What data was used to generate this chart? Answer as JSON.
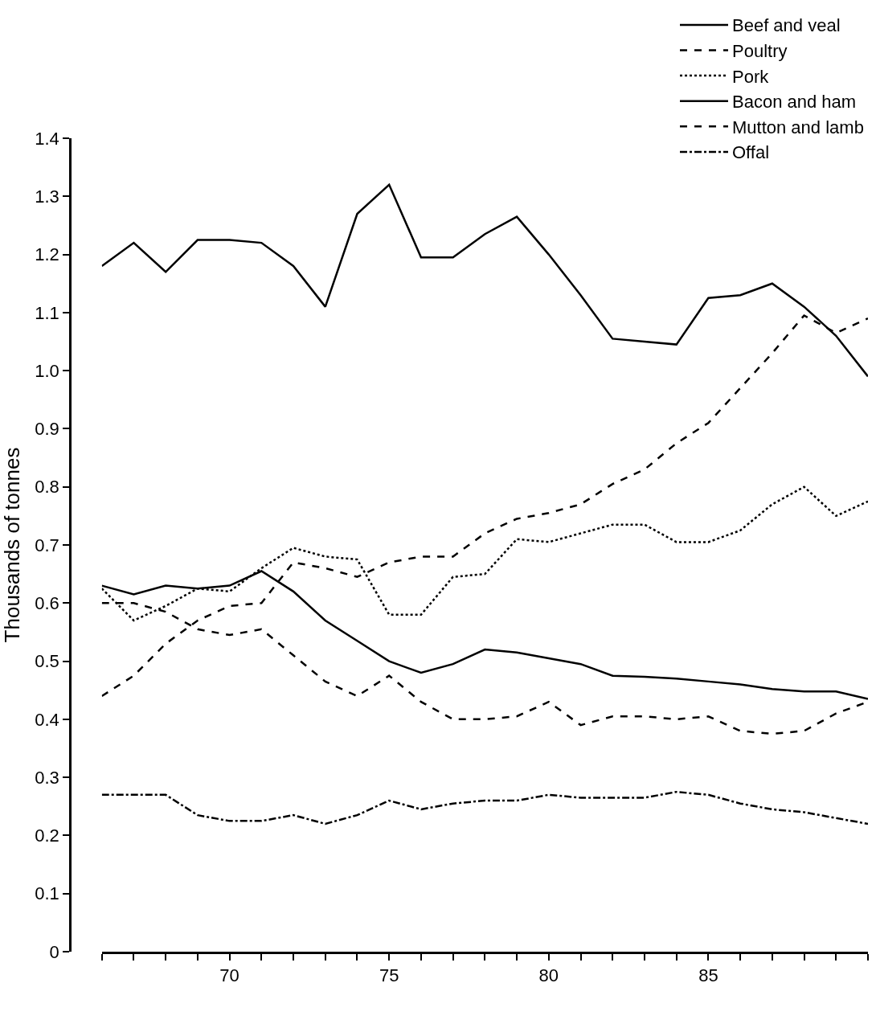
{
  "chart_data": {
    "type": "line",
    "ylabel": "Thousands of tonnes",
    "x": [
      66,
      67,
      68,
      69,
      70,
      71,
      72,
      73,
      74,
      75,
      76,
      77,
      78,
      79,
      80,
      81,
      82,
      83,
      84,
      85,
      86,
      87,
      88,
      89,
      90
    ],
    "xlim": [
      66,
      90
    ],
    "xticks": [
      {
        "value": 66,
        "label": null
      },
      {
        "value": 67,
        "label": null
      },
      {
        "value": 68,
        "label": null
      },
      {
        "value": 69,
        "label": null
      },
      {
        "value": 70,
        "label": "70"
      },
      {
        "value": 71,
        "label": null
      },
      {
        "value": 72,
        "label": null
      },
      {
        "value": 73,
        "label": null
      },
      {
        "value": 74,
        "label": null
      },
      {
        "value": 75,
        "label": "75"
      },
      {
        "value": 76,
        "label": null
      },
      {
        "value": 77,
        "label": null
      },
      {
        "value": 78,
        "label": null
      },
      {
        "value": 79,
        "label": null
      },
      {
        "value": 80,
        "label": "80"
      },
      {
        "value": 81,
        "label": null
      },
      {
        "value": 82,
        "label": null
      },
      {
        "value": 83,
        "label": null
      },
      {
        "value": 84,
        "label": null
      },
      {
        "value": 85,
        "label": "85"
      },
      {
        "value": 86,
        "label": null
      },
      {
        "value": 87,
        "label": null
      },
      {
        "value": 88,
        "label": null
      },
      {
        "value": 89,
        "label": null
      },
      {
        "value": 90,
        "label": null
      }
    ],
    "ylim": [
      0,
      1.4
    ],
    "yticks": [
      0,
      {
        "value": 0.1,
        "label": "0.1"
      },
      {
        "value": 0.2,
        "label": "0.2"
      },
      {
        "value": 0.3,
        "label": "0.3"
      },
      {
        "value": 0.4,
        "label": "0.4"
      },
      {
        "value": 0.5,
        "label": "0.5"
      },
      {
        "value": 0.6,
        "label": "0.6"
      },
      {
        "value": 0.7,
        "label": "0.7"
      },
      {
        "value": 0.8,
        "label": "0.8"
      },
      {
        "value": 0.9,
        "label": "0.9"
      },
      {
        "value": 1.0,
        "label": "1.0"
      },
      {
        "value": 1.1,
        "label": "1.1"
      },
      {
        "value": 1.2,
        "label": "1.2"
      },
      {
        "value": 1.3,
        "label": "1.3"
      },
      {
        "value": 1.4,
        "label": "1.4"
      }
    ],
    "legend": "top right",
    "marker": "none",
    "series": [
      {
        "name": "Beef and veal",
        "color": "#000000",
        "line_style": "solid",
        "values": [
          1.18,
          1.22,
          1.17,
          1.225,
          1.225,
          1.22,
          1.18,
          1.11,
          1.27,
          1.32,
          1.195,
          1.195,
          1.235,
          1.265,
          1.2,
          1.13,
          1.055,
          1.05,
          1.045,
          1.125,
          1.13,
          1.15,
          1.11,
          1.06,
          0.99
        ]
      },
      {
        "name": "Poultry",
        "color": "#000000",
        "line_style": "dashed",
        "values": [
          0.44,
          0.475,
          0.53,
          0.57,
          0.595,
          0.6,
          0.67,
          0.66,
          0.645,
          0.67,
          0.68,
          0.68,
          0.72,
          0.745,
          0.755,
          0.77,
          0.805,
          0.83,
          0.875,
          0.91,
          0.97,
          1.03,
          1.095,
          1.065,
          1.09
        ]
      },
      {
        "name": "Pork",
        "color": "#000000",
        "line_style": "dotted",
        "values": [
          0.625,
          0.57,
          0.595,
          0.625,
          0.62,
          0.66,
          0.695,
          0.68,
          0.675,
          0.58,
          0.58,
          0.645,
          0.65,
          0.71,
          0.705,
          0.72,
          0.735,
          0.735,
          0.705,
          0.705,
          0.725,
          0.77,
          0.8,
          0.75,
          0.775
        ]
      },
      {
        "name": "Bacon and ham",
        "color": "#000000",
        "line_style": "solid",
        "values": [
          0.63,
          0.615,
          0.63,
          0.625,
          0.63,
          0.655,
          0.62,
          0.57,
          0.535,
          0.5,
          0.48,
          0.495,
          0.52,
          0.515,
          0.505,
          0.495,
          0.475,
          0.473,
          0.47,
          0.465,
          0.46,
          0.452,
          0.448,
          0.448,
          0.435
        ]
      },
      {
        "name": "Mutton and lamb",
        "color": "#000000",
        "line_style": "dashed",
        "values": [
          0.6,
          0.6,
          0.585,
          0.555,
          0.545,
          0.555,
          0.51,
          0.465,
          0.44,
          0.475,
          0.43,
          0.4,
          0.4,
          0.405,
          0.43,
          0.39,
          0.405,
          0.405,
          0.4,
          0.405,
          0.38,
          0.375,
          0.38,
          0.41,
          0.43
        ]
      },
      {
        "name": "Offal",
        "color": "#000000",
        "line_style": "dashdot",
        "values": [
          0.27,
          0.27,
          0.27,
          0.235,
          0.225,
          0.225,
          0.235,
          0.22,
          0.235,
          0.26,
          0.245,
          0.255,
          0.26,
          0.26,
          0.27,
          0.265,
          0.265,
          0.265,
          0.275,
          0.27,
          0.255,
          0.245,
          0.24,
          0.23,
          0.22
        ]
      }
    ]
  }
}
